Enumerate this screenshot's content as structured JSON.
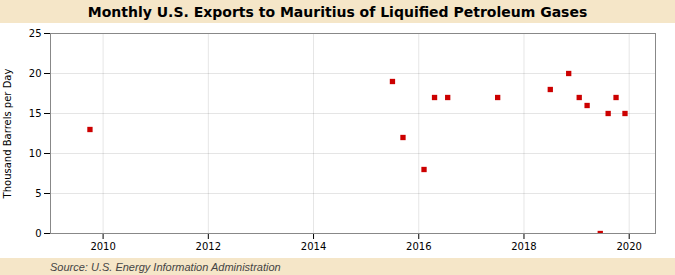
{
  "chart_data": {
    "type": "scatter",
    "title": "Monthly U.S. Exports to Mauritius of Liquified Petroleum Gases",
    "ylabel": "Thousand Barrels per Day",
    "annotations": [
      "Source: U.S. Energy Information Administration"
    ],
    "x": [
      2009.75,
      2015.5,
      2015.7,
      2016.1,
      2016.3,
      2016.55,
      2017.5,
      2018.5,
      2018.85,
      2019.05,
      2019.2,
      2019.45,
      2019.6,
      2019.75,
      2019.92
    ],
    "values": [
      13,
      19,
      12,
      8,
      17,
      17,
      17,
      18,
      20,
      17,
      16,
      0,
      15,
      17,
      15
    ],
    "color": "#cc0000",
    "marker": "square",
    "xlim": [
      2009.0,
      2020.5
    ],
    "ylim": [
      0,
      25
    ],
    "xticks": [
      2010,
      2012,
      2014,
      2016,
      2018,
      2020
    ],
    "yticks": [
      0,
      5,
      10,
      15,
      20,
      25
    ],
    "grid": true
  }
}
